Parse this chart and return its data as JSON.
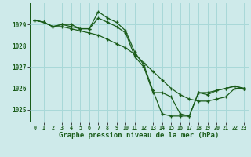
{
  "title": "Graphe pression niveau de la mer (hPa)",
  "background_color": "#ceeaea",
  "grid_color": "#a8d8d8",
  "line_color": "#1a5c1a",
  "xlim": [
    -0.5,
    23.5
  ],
  "ylim": [
    1024.4,
    1030.0
  ],
  "yticks": [
    1025,
    1026,
    1027,
    1028,
    1029
  ],
  "xticks": [
    0,
    1,
    2,
    3,
    4,
    5,
    6,
    7,
    8,
    9,
    10,
    11,
    12,
    13,
    14,
    15,
    16,
    17,
    18,
    19,
    20,
    21,
    22,
    23
  ],
  "series": [
    {
      "x": [
        0,
        1,
        2,
        3,
        4,
        5,
        6,
        7,
        8,
        9,
        10,
        11,
        12,
        13,
        14,
        15,
        16,
        17,
        18,
        19,
        20,
        21,
        22,
        23
      ],
      "y": [
        1029.2,
        1029.1,
        1028.9,
        1029.0,
        1029.0,
        1028.8,
        1028.8,
        1029.6,
        1029.3,
        1029.1,
        1028.7,
        1027.7,
        1027.1,
        1025.9,
        1024.8,
        1024.7,
        1024.7,
        1024.7,
        1025.8,
        1025.7,
        1025.9,
        1026.0,
        1026.1,
        1026.0
      ]
    },
    {
      "x": [
        0,
        1,
        2,
        3,
        4,
        5,
        6,
        7,
        8,
        9,
        10,
        11,
        12,
        13,
        14,
        15,
        16,
        17,
        18,
        19,
        20,
        21,
        22,
        23
      ],
      "y": [
        1029.2,
        1029.1,
        1028.9,
        1028.9,
        1028.8,
        1028.7,
        1028.6,
        1028.5,
        1028.3,
        1028.1,
        1027.9,
        1027.6,
        1027.2,
        1026.8,
        1026.4,
        1026.0,
        1025.7,
        1025.5,
        1025.4,
        1025.4,
        1025.5,
        1025.6,
        1026.0,
        1026.0
      ]
    },
    {
      "x": [
        0,
        1,
        2,
        3,
        4,
        5,
        6,
        7,
        8,
        9,
        10,
        11,
        12,
        13,
        14,
        15,
        16,
        17,
        18,
        19,
        20,
        21,
        22,
        23
      ],
      "y": [
        1029.2,
        1029.1,
        1028.9,
        1029.0,
        1028.9,
        1028.8,
        1028.8,
        1029.3,
        1029.1,
        1028.9,
        1028.6,
        1027.5,
        1027.0,
        1025.8,
        1025.8,
        1025.6,
        1024.8,
        1024.7,
        1025.8,
        1025.8,
        1025.9,
        1026.0,
        1026.1,
        1026.0
      ]
    }
  ],
  "marker": "+",
  "marker_size": 3.5,
  "linewidth": 0.9,
  "title_fontsize": 6.5,
  "ytick_fontsize": 5.5,
  "xtick_fontsize": 4.8
}
